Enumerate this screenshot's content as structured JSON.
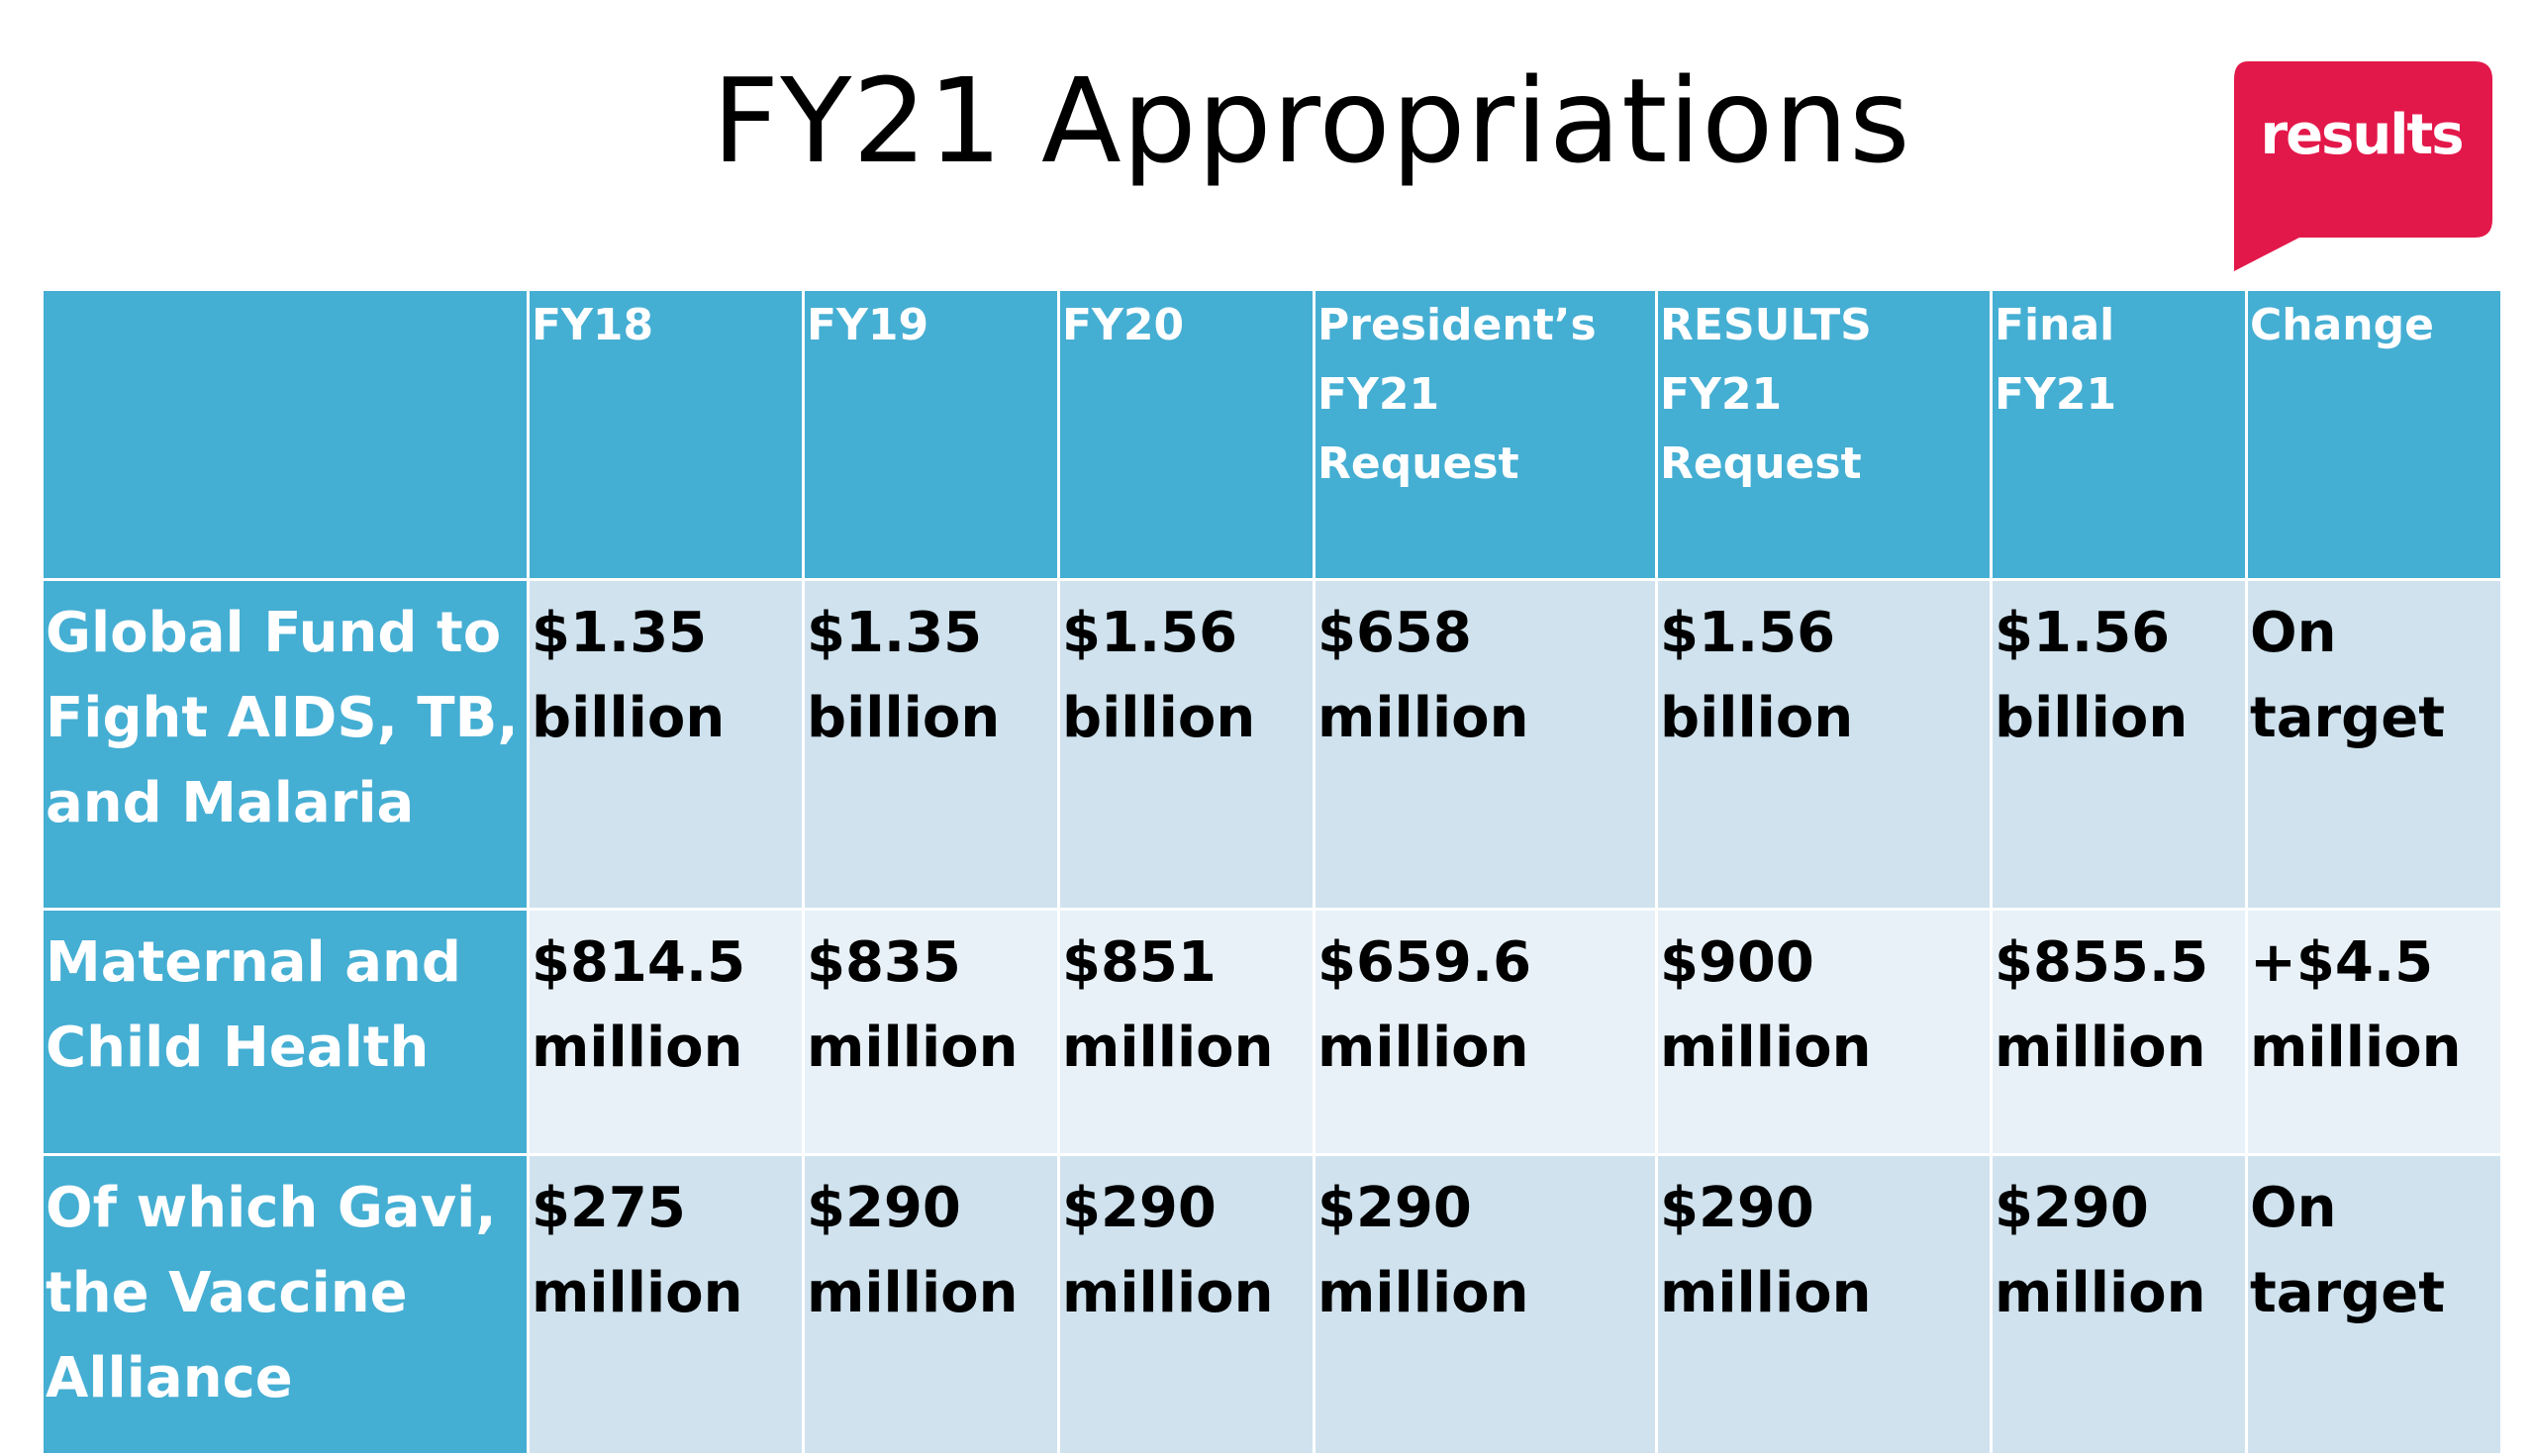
{
  "title": "FY21 Appropriations",
  "logo": {
    "text": "results",
    "color": "#e3184a"
  },
  "colors": {
    "header": "#45aed3",
    "row_dark": "#cfe2ee",
    "row_light": "#e8f1f8"
  },
  "table": {
    "headers": [
      "",
      "FY18",
      "FY19",
      "FY20",
      "President’s FY21 Request",
      "RESULTS FY21 Request",
      "Final FY21",
      "Change"
    ],
    "rows": [
      {
        "label": "Global Fund to Fight AIDS, TB, and Malaria",
        "values": [
          "$1.35 billion",
          "$1.35 billion",
          "$1.56 billion",
          "$658 million",
          "$1.56 billion",
          "$1.56 billion",
          "On target"
        ]
      },
      {
        "label": "Maternal and Child Health",
        "values": [
          "$814.5 million",
          "$835 million",
          "$851 million",
          "$659.6 million",
          "$900 million",
          "$855.5 million",
          "+$4.5 million"
        ]
      },
      {
        "label": "Of which Gavi, the Vaccine Alliance",
        "values": [
          "$275 million",
          "$290 million",
          "$290 million",
          "$290 million",
          "$290 million",
          "$290 million",
          "On target"
        ]
      }
    ]
  }
}
